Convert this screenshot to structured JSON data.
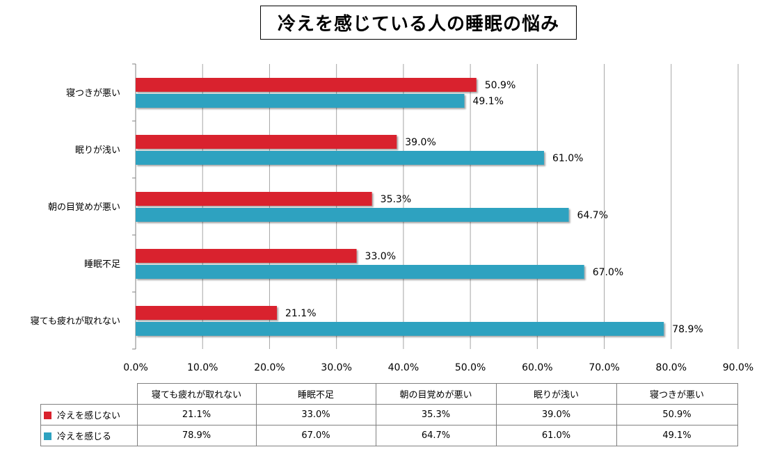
{
  "chart_data": {
    "type": "bar",
    "orientation": "horizontal",
    "title": "冷えを感じている人の睡眠の悩み",
    "categories": [
      "寝つきが悪い",
      "眠りが浅い",
      "朝の目覚めが悪い",
      "睡眠不足",
      "寝ても疲れが取れない"
    ],
    "series": [
      {
        "name": "冷えを感じない",
        "color": "#d9212d",
        "values": [
          50.9,
          39.0,
          35.3,
          33.0,
          21.1
        ],
        "labels": [
          "50.9%",
          "39.0%",
          "35.3%",
          "33.0%",
          "21.1%"
        ]
      },
      {
        "name": "冷えを感じる",
        "color": "#2ea2c0",
        "values": [
          49.1,
          61.0,
          64.7,
          67.0,
          78.9
        ],
        "labels": [
          "49.1%",
          "61.0%",
          "64.7%",
          "67.0%",
          "78.9%"
        ]
      }
    ],
    "xlim": [
      0,
      90
    ],
    "xticks": [
      "0.0%",
      "10.0%",
      "20.0%",
      "30.0%",
      "40.0%",
      "50.0%",
      "60.0%",
      "70.0%",
      "80.0%",
      "90.0%"
    ],
    "grid": true,
    "data_table": {
      "columns": [
        "寝ても疲れが取れない",
        "睡眠不足",
        "朝の目覚めが悪い",
        "眠りが浅い",
        "寝つきが悪い"
      ],
      "rows": [
        {
          "series": "冷えを感じない",
          "values": [
            "21.1%",
            "33.0%",
            "35.3%",
            "39.0%",
            "50.9%"
          ]
        },
        {
          "series": "冷えを感じる",
          "values": [
            "78.9%",
            "67.0%",
            "64.7%",
            "61.0%",
            "49.1%"
          ]
        }
      ]
    }
  }
}
